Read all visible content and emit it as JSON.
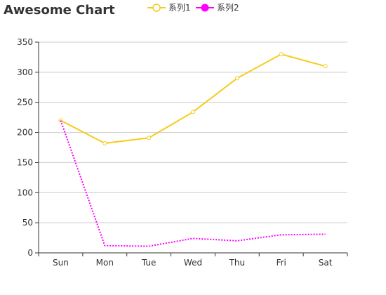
{
  "chart_data": {
    "type": "line",
    "title": "Awesome Chart",
    "xlabel": "",
    "ylabel": "",
    "categories": [
      "Sun",
      "Mon",
      "Tue",
      "Wed",
      "Thu",
      "Fri",
      "Sat"
    ],
    "ylim": [
      0,
      350
    ],
    "yticks": [
      0,
      50,
      100,
      150,
      200,
      250,
      300,
      350
    ],
    "grid": true,
    "legend_position": "top",
    "series": [
      {
        "name": "系列1",
        "values": [
          220,
          182,
          191,
          234,
          290,
          330,
          310
        ],
        "color": "#f5cc1d",
        "line_style": "solid",
        "marker": "hollow-circle"
      },
      {
        "name": "系列2",
        "values": [
          220,
          12,
          11,
          24,
          20,
          30,
          31
        ],
        "color": "#ff00ff",
        "line_style": "dotted",
        "marker": "none"
      }
    ]
  }
}
